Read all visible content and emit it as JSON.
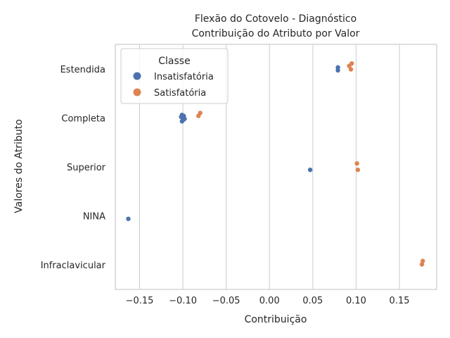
{
  "chart_data": {
    "type": "scatter",
    "title_lines": [
      "Flexão do Cotovelo - Diagnóstico",
      "Contribuição do Atributo por Valor"
    ],
    "xlabel": "Contribuição",
    "ylabel": "Valores do Atributo",
    "xlim": [
      -0.178,
      0.193
    ],
    "x_ticks": [
      -0.15,
      -0.1,
      -0.05,
      0.0,
      0.05,
      0.1,
      0.15
    ],
    "x_tick_labels": [
      "−0.15",
      "−0.10",
      "−0.05",
      "0.00",
      "0.05",
      "0.10",
      "0.15"
    ],
    "categories": [
      "Estendida",
      "Completa",
      "Superior",
      "NINA",
      "Infraclavicular"
    ],
    "grid": "vertical",
    "legend": {
      "title": "Classe",
      "position": "top-left",
      "entries": [
        "Insatisfatória",
        "Satisfatória"
      ]
    },
    "colors": {
      "Insatisfatória": "#4c72b0",
      "Satisfatória": "#dd8452"
    },
    "series": [
      {
        "name": "Insatisfatória",
        "points": [
          {
            "category": "Estendida",
            "x": 0.079,
            "jitter": -0.03
          },
          {
            "category": "Estendida",
            "x": 0.079,
            "jitter": 0.03
          },
          {
            "category": "Completa",
            "x": -0.101,
            "jitter": -0.06
          },
          {
            "category": "Completa",
            "x": -0.099,
            "jitter": -0.04
          },
          {
            "category": "Completa",
            "x": -0.102,
            "jitter": -0.02
          },
          {
            "category": "Completa",
            "x": -0.1,
            "jitter": 0.01
          },
          {
            "category": "Completa",
            "x": -0.098,
            "jitter": 0.02
          },
          {
            "category": "Completa",
            "x": -0.1,
            "jitter": 0.05
          },
          {
            "category": "Completa",
            "x": -0.101,
            "jitter": 0.07
          },
          {
            "category": "Superior",
            "x": 0.047,
            "jitter": 0.06
          },
          {
            "category": "NINA",
            "x": -0.163,
            "jitter": 0.06
          }
        ]
      },
      {
        "name": "Satisfatória",
        "points": [
          {
            "category": "Estendida",
            "x": 0.095,
            "jitter": -0.11
          },
          {
            "category": "Estendida",
            "x": 0.092,
            "jitter": -0.06
          },
          {
            "category": "Estendida",
            "x": 0.094,
            "jitter": 0.01
          },
          {
            "category": "Completa",
            "x": -0.08,
            "jitter": -0.1
          },
          {
            "category": "Completa",
            "x": -0.082,
            "jitter": -0.04
          },
          {
            "category": "Superior",
            "x": 0.101,
            "jitter": -0.07
          },
          {
            "category": "Superior",
            "x": 0.102,
            "jitter": 0.06
          },
          {
            "category": "Infraclavicular",
            "x": 0.177,
            "jitter": -0.08
          },
          {
            "category": "Infraclavicular",
            "x": 0.176,
            "jitter": -0.01
          }
        ]
      }
    ]
  }
}
